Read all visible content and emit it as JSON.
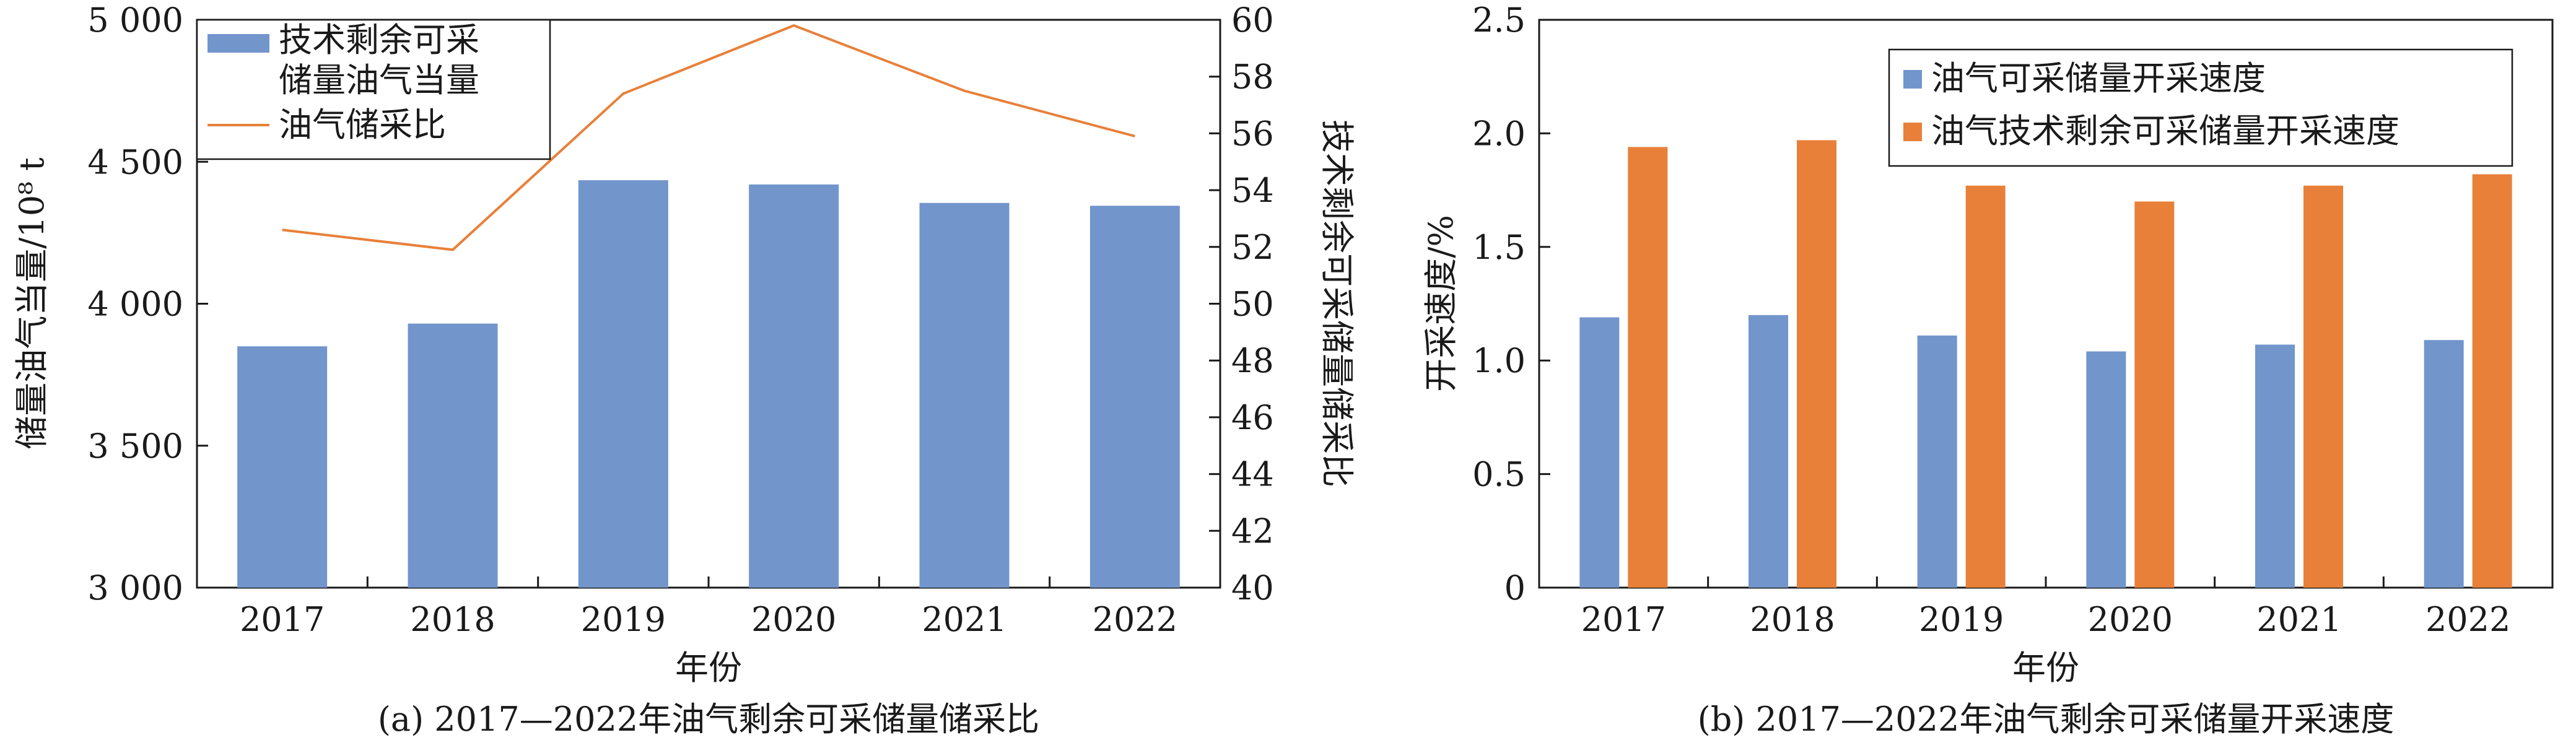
{
  "chart_data": [
    {
      "type": "bar+line",
      "caption": "(a) 2017—2022年油气剩余可采储量储采比",
      "xlabel": "年份",
      "ylabel_left": "储量油气当量/10⁸ t",
      "ylabel_right": "技术剩余可采储量储采比",
      "categories": [
        "2017",
        "2018",
        "2019",
        "2020",
        "2021",
        "2022"
      ],
      "ylim_left": [
        3000,
        5000
      ],
      "yticks_left": [
        "3 000",
        "3 500",
        "4 000",
        "4 500",
        "5 000"
      ],
      "ylim_right": [
        40,
        60
      ],
      "yticks_right": [
        "40",
        "42",
        "44",
        "46",
        "48",
        "50",
        "52",
        "54",
        "56",
        "58",
        "60"
      ],
      "legend_position": "top-left",
      "series": [
        {
          "name": "技术剩余可采储量油气当量",
          "legend_lines": [
            "技术剩余可采",
            "储量油气当量"
          ],
          "kind": "bar",
          "axis": "left",
          "color": "#7295cc",
          "values": [
            3850,
            3930,
            4435,
            4420,
            4355,
            4345
          ]
        },
        {
          "name": "油气储采比",
          "kind": "line",
          "axis": "right",
          "color": "#e8803a",
          "values": [
            52.6,
            51.9,
            57.4,
            59.8,
            57.5,
            55.9
          ]
        }
      ]
    },
    {
      "type": "bar",
      "caption": "(b) 2017—2022年油气剩余可采储量开采速度",
      "xlabel": "年份",
      "ylabel": "开采速度/%",
      "categories": [
        "2017",
        "2018",
        "2019",
        "2020",
        "2021",
        "2022"
      ],
      "ylim": [
        0,
        2.5
      ],
      "yticks": [
        "0",
        "0.5",
        "1.0",
        "1.5",
        "2.0",
        "2.5"
      ],
      "legend_position": "top-right",
      "series": [
        {
          "name": "油气可采储量开采速度",
          "color": "#7295cc",
          "values": [
            1.19,
            1.2,
            1.11,
            1.04,
            1.07,
            1.09
          ]
        },
        {
          "name": "油气技术剩余可采储量开采速度",
          "color": "#e8803a",
          "values": [
            1.94,
            1.97,
            1.77,
            1.7,
            1.77,
            1.82
          ]
        }
      ]
    }
  ]
}
